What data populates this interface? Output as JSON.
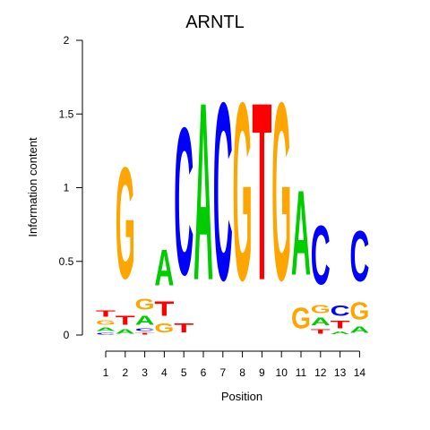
{
  "chart_data": {
    "type": "sequence-logo",
    "title": "ARNTL",
    "xlabel": "Position",
    "ylabel": "Information content",
    "ylim": [
      0,
      2
    ],
    "y_ticks": [
      "0",
      "0.5",
      "1",
      "1.5",
      "2"
    ],
    "y_tick_values": [
      0,
      0.5,
      1,
      1.5,
      2
    ],
    "positions": [
      "1",
      "2",
      "3",
      "4",
      "5",
      "6",
      "7",
      "8",
      "9",
      "10",
      "11",
      "12",
      "13",
      "14"
    ],
    "colors": {
      "A": "#00cc00",
      "C": "#0000ff",
      "G": "#ffa500",
      "T": "#ff0000"
    },
    "stacks": [
      [
        {
          "base": "C",
          "value": 0.02
        },
        {
          "base": "A",
          "value": 0.04
        },
        {
          "base": "G",
          "value": 0.05
        },
        {
          "base": "T",
          "value": 0.07
        }
      ],
      [
        {
          "base": "A",
          "value": 0.05
        },
        {
          "base": "T",
          "value": 0.1
        },
        {
          "base": "G",
          "value": 1.21
        }
      ],
      [
        {
          "base": "T",
          "value": 0.02
        },
        {
          "base": "C",
          "value": 0.03
        },
        {
          "base": "A",
          "value": 0.1
        },
        {
          "base": "G",
          "value": 0.12
        }
      ],
      [
        {
          "base": "G",
          "value": 0.1
        },
        {
          "base": "T",
          "value": 0.16
        },
        {
          "base": "A",
          "value": 0.39
        }
      ],
      [
        {
          "base": "T",
          "value": 0.1
        },
        {
          "base": "C",
          "value": 1.6
        }
      ],
      [
        {
          "base": "A",
          "value": 1.93
        }
      ],
      [
        {
          "base": "C",
          "value": 1.93
        }
      ],
      [
        {
          "base": "G",
          "value": 1.93
        }
      ],
      [
        {
          "base": "T",
          "value": 1.93
        }
      ],
      [
        {
          "base": "G",
          "value": 1.93
        }
      ],
      [
        {
          "base": "G",
          "value": 0.23
        },
        {
          "base": "A",
          "value": 0.92
        }
      ],
      [
        {
          "base": "T",
          "value": 0.05
        },
        {
          "base": "A",
          "value": 0.08
        },
        {
          "base": "G",
          "value": 0.09
        },
        {
          "base": "C",
          "value": 0.64
        }
      ],
      [
        {
          "base": "A",
          "value": 0.03
        },
        {
          "base": "T",
          "value": 0.08
        },
        {
          "base": "C",
          "value": 0.11
        }
      ],
      [
        {
          "base": "A",
          "value": 0.07
        },
        {
          "base": "G",
          "value": 0.19
        },
        {
          "base": "C",
          "value": 0.55
        }
      ]
    ]
  }
}
